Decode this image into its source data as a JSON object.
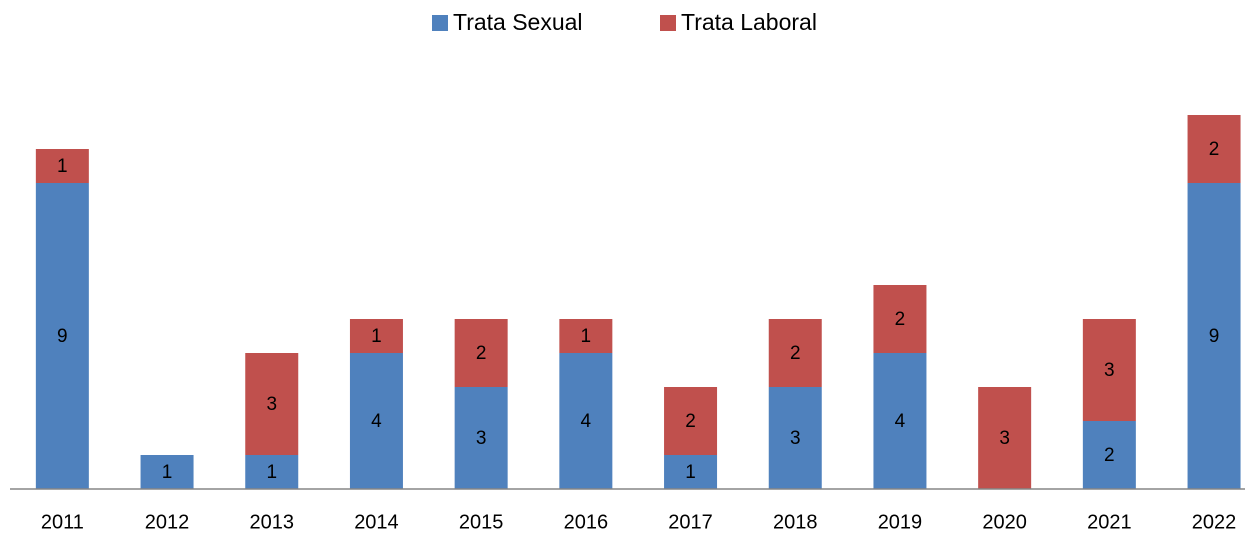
{
  "chart_data": {
    "type": "stacked_bar",
    "categories": [
      "2011",
      "2012",
      "2013",
      "2014",
      "2015",
      "2016",
      "2017",
      "2018",
      "2019",
      "2020",
      "2021",
      "2022"
    ],
    "series": [
      {
        "name": "Trata Sexual",
        "color": "#4f81bd",
        "values": [
          9,
          1,
          1,
          4,
          3,
          4,
          1,
          3,
          4,
          null,
          2,
          9
        ]
      },
      {
        "name": "Trata Laboral",
        "color": "#c0504d",
        "values": [
          1,
          null,
          3,
          1,
          2,
          1,
          2,
          2,
          2,
          3,
          3,
          2
        ]
      }
    ],
    "ylim": [
      0,
      11
    ],
    "legend": "top"
  }
}
